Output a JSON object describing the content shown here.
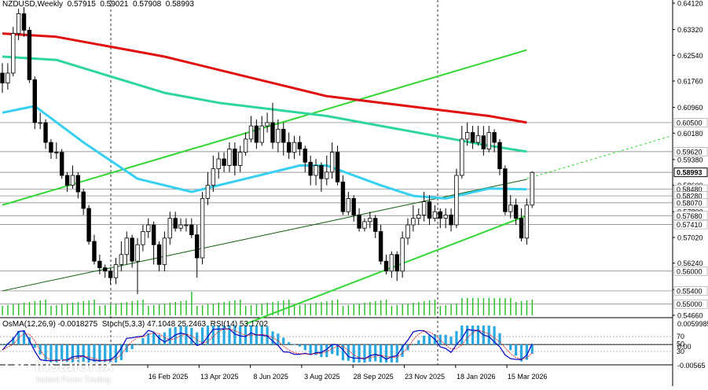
{
  "header": {
    "symbol": "NZDUSD,Weekly",
    "open": "0.57915",
    "high": "0.59021",
    "low": "0.57908",
    "close": "0.58993"
  },
  "indicator_header": {
    "osma": "OsMA(12,26,9) -0.0018275",
    "stoch": "Stoch(5,3,3) 47.1048 25.2463",
    "rsi": "RSI(14) 53.1702"
  },
  "logo": {
    "main": "instaforex",
    "sub": "Instant Forex Trading"
  },
  "colors": {
    "ma_red": "#e01010",
    "ma_teal": "#2ed69a",
    "ma_cyan": "#38d0f0",
    "channel": "#33d633",
    "candle_bull": "#ffffff",
    "candle_bear": "#000000",
    "volume": "#22bb22",
    "osma": "#2aa8e0",
    "stoch_main": "#1010c0",
    "stoch_signal": "#e01010",
    "price_label_bg": "#ffffff"
  },
  "chart_data": {
    "type": "candlestick",
    "title": "NZDUSD,Weekly",
    "ylim": [
      0.5466,
      0.6412
    ],
    "x_tick_labels": [
      "16 Feb 2025",
      "13 Apr 2025",
      "8 Jun 2025",
      "3 Aug 2025",
      "28 Sep 2025",
      "23 Nov 2025",
      "18 Jan 2026",
      "15 Mar 2026"
    ],
    "y_tick_labels": [
      "0.64120",
      "0.63320",
      "0.62540",
      "0.61760",
      "0.60960",
      "0.60180",
      "0.59380",
      "0.58600",
      "0.57800",
      "0.57020",
      "0.56240",
      "0.55440",
      "0.54660"
    ],
    "price_levels": [
      {
        "label": "0.60500",
        "value": 0.605
      },
      {
        "label": "0.59620",
        "value": 0.5962
      },
      {
        "label": "0.58993",
        "value": 0.58993,
        "current": true
      },
      {
        "label": "0.58480",
        "value": 0.5848
      },
      {
        "label": "0.58280",
        "value": 0.5828
      },
      {
        "label": "0.58070",
        "value": 0.5807
      },
      {
        "label": "0.57680",
        "value": 0.5768
      },
      {
        "label": "0.57410",
        "value": 0.5741
      },
      {
        "label": "0.56000",
        "value": 0.56
      },
      {
        "label": "0.55400",
        "value": 0.554
      },
      {
        "label": "0.55000",
        "value": 0.55
      }
    ],
    "candles": [
      [
        0.62,
        0.617,
        0.623,
        0.614
      ],
      [
        0.617,
        0.62,
        0.623,
        0.615
      ],
      [
        0.62,
        0.632,
        0.634,
        0.619
      ],
      [
        0.632,
        0.638,
        0.6395,
        0.63
      ],
      [
        0.638,
        0.633,
        0.64,
        0.631
      ],
      [
        0.633,
        0.618,
        0.634,
        0.617
      ],
      [
        0.618,
        0.605,
        0.619,
        0.603
      ],
      [
        0.605,
        0.605,
        0.608,
        0.603
      ],
      [
        0.605,
        0.599,
        0.606,
        0.597
      ],
      [
        0.599,
        0.596,
        0.6,
        0.594
      ],
      [
        0.596,
        0.596,
        0.599,
        0.594
      ],
      [
        0.596,
        0.589,
        0.597,
        0.588
      ],
      [
        0.589,
        0.586,
        0.59,
        0.584
      ],
      [
        0.586,
        0.589,
        0.592,
        0.585
      ],
      [
        0.589,
        0.584,
        0.59,
        0.582
      ],
      [
        0.584,
        0.579,
        0.585,
        0.577
      ],
      [
        0.579,
        0.569,
        0.58,
        0.568
      ],
      [
        0.569,
        0.563,
        0.571,
        0.562
      ],
      [
        0.563,
        0.561,
        0.565,
        0.559
      ],
      [
        0.561,
        0.56,
        0.562,
        0.558
      ],
      [
        0.56,
        0.558,
        0.561,
        0.556
      ],
      [
        0.558,
        0.562,
        0.564,
        0.556
      ],
      [
        0.562,
        0.565,
        0.569,
        0.56
      ],
      [
        0.565,
        0.57,
        0.572,
        0.562
      ],
      [
        0.57,
        0.563,
        0.571,
        0.561
      ],
      [
        0.563,
        0.568,
        0.57,
        0.553
      ],
      [
        0.568,
        0.572,
        0.574,
        0.566
      ],
      [
        0.572,
        0.574,
        0.576,
        0.57
      ],
      [
        0.574,
        0.568,
        0.575,
        0.562
      ],
      [
        0.568,
        0.562,
        0.569,
        0.56
      ],
      [
        0.562,
        0.57,
        0.572,
        0.56
      ],
      [
        0.57,
        0.576,
        0.578,
        0.568
      ],
      [
        0.576,
        0.573,
        0.578,
        0.572
      ],
      [
        0.573,
        0.574,
        0.576,
        0.572
      ],
      [
        0.574,
        0.574,
        0.576,
        0.572
      ],
      [
        0.574,
        0.571,
        0.576,
        0.57
      ],
      [
        0.571,
        0.564,
        0.574,
        0.558
      ],
      [
        0.564,
        0.582,
        0.584,
        0.562
      ],
      [
        0.582,
        0.586,
        0.59,
        0.58
      ],
      [
        0.586,
        0.591,
        0.595,
        0.584
      ],
      [
        0.591,
        0.594,
        0.596,
        0.588
      ],
      [
        0.594,
        0.592,
        0.596,
        0.59
      ],
      [
        0.592,
        0.597,
        0.599,
        0.59
      ],
      [
        0.597,
        0.592,
        0.599,
        0.589
      ],
      [
        0.592,
        0.596,
        0.598,
        0.59
      ],
      [
        0.596,
        0.6,
        0.602,
        0.595
      ],
      [
        0.6,
        0.604,
        0.607,
        0.599
      ],
      [
        0.604,
        0.599,
        0.606,
        0.597
      ],
      [
        0.599,
        0.604,
        0.607,
        0.598
      ],
      [
        0.604,
        0.605,
        0.608,
        0.602
      ],
      [
        0.605,
        0.599,
        0.611,
        0.597
      ],
      [
        0.599,
        0.603,
        0.606,
        0.596
      ],
      [
        0.603,
        0.599,
        0.605,
        0.595
      ],
      [
        0.599,
        0.596,
        0.602,
        0.594
      ],
      [
        0.596,
        0.599,
        0.601,
        0.594
      ],
      [
        0.599,
        0.597,
        0.601,
        0.595
      ],
      [
        0.597,
        0.593,
        0.598,
        0.59
      ],
      [
        0.593,
        0.589,
        0.595,
        0.586
      ],
      [
        0.589,
        0.592,
        0.594,
        0.586
      ],
      [
        0.592,
        0.588,
        0.593,
        0.584
      ],
      [
        0.588,
        0.59,
        0.595,
        0.586
      ],
      [
        0.59,
        0.596,
        0.599,
        0.588
      ],
      [
        0.596,
        0.587,
        0.598,
        0.586
      ],
      [
        0.587,
        0.578,
        0.589,
        0.577
      ],
      [
        0.578,
        0.582,
        0.584,
        0.577
      ],
      [
        0.582,
        0.577,
        0.583,
        0.575
      ],
      [
        0.577,
        0.573,
        0.579,
        0.572
      ],
      [
        0.573,
        0.575,
        0.576,
        0.572
      ],
      [
        0.575,
        0.576,
        0.578,
        0.573
      ],
      [
        0.576,
        0.572,
        0.577,
        0.57
      ],
      [
        0.572,
        0.563,
        0.574,
        0.562
      ],
      [
        0.563,
        0.56,
        0.565,
        0.559
      ],
      [
        0.56,
        0.565,
        0.566,
        0.558
      ],
      [
        0.565,
        0.56,
        0.566,
        0.557
      ],
      [
        0.56,
        0.57,
        0.572,
        0.558
      ],
      [
        0.57,
        0.574,
        0.576,
        0.568
      ],
      [
        0.574,
        0.576,
        0.58,
        0.572
      ],
      [
        0.576,
        0.577,
        0.579,
        0.574
      ],
      [
        0.577,
        0.581,
        0.584,
        0.575
      ],
      [
        0.581,
        0.576,
        0.583,
        0.574
      ],
      [
        0.576,
        0.578,
        0.58,
        0.575
      ],
      [
        0.578,
        0.576,
        0.579,
        0.573
      ],
      [
        0.576,
        0.577,
        0.579,
        0.573
      ],
      [
        0.577,
        0.574,
        0.579,
        0.572
      ],
      [
        0.574,
        0.589,
        0.591,
        0.573
      ],
      [
        0.589,
        0.6,
        0.604,
        0.588
      ],
      [
        0.6,
        0.602,
        0.605,
        0.598
      ],
      [
        0.602,
        0.599,
        0.604,
        0.597
      ],
      [
        0.599,
        0.601,
        0.604,
        0.598
      ],
      [
        0.601,
        0.597,
        0.604,
        0.595
      ],
      [
        0.597,
        0.602,
        0.604,
        0.596
      ],
      [
        0.602,
        0.599,
        0.603,
        0.596
      ],
      [
        0.599,
        0.591,
        0.6,
        0.589
      ],
      [
        0.591,
        0.578,
        0.592,
        0.577
      ],
      [
        0.578,
        0.58,
        0.583,
        0.576
      ],
      [
        0.58,
        0.576,
        0.582,
        0.574
      ],
      [
        0.576,
        0.57,
        0.579,
        0.569
      ],
      [
        0.57,
        0.58,
        0.582,
        0.568
      ],
      [
        0.58,
        0.5899,
        0.5902,
        0.5791
      ]
    ],
    "ma_200": [
      [
        0,
        0.632
      ],
      [
        10,
        0.631
      ],
      [
        20,
        0.628
      ],
      [
        30,
        0.625
      ],
      [
        40,
        0.621
      ],
      [
        50,
        0.617
      ],
      [
        60,
        0.613
      ],
      [
        70,
        0.611
      ],
      [
        80,
        0.609
      ],
      [
        90,
        0.607
      ],
      [
        97,
        0.605
      ]
    ],
    "ma_100": [
      [
        0,
        0.625
      ],
      [
        10,
        0.624
      ],
      [
        20,
        0.619
      ],
      [
        30,
        0.614
      ],
      [
        40,
        0.611
      ],
      [
        50,
        0.609
      ],
      [
        60,
        0.607
      ],
      [
        70,
        0.604
      ],
      [
        80,
        0.601
      ],
      [
        90,
        0.598
      ],
      [
        97,
        0.5962
      ]
    ],
    "ma_50": [
      [
        0,
        0.608
      ],
      [
        6,
        0.61
      ],
      [
        15,
        0.599
      ],
      [
        25,
        0.588
      ],
      [
        35,
        0.584
      ],
      [
        45,
        0.588
      ],
      [
        55,
        0.592
      ],
      [
        60,
        0.592
      ],
      [
        70,
        0.586
      ],
      [
        76,
        0.5828
      ],
      [
        82,
        0.582
      ],
      [
        90,
        0.585
      ],
      [
        97,
        0.5848
      ]
    ],
    "channel_top": [
      [
        0,
        0.58
      ],
      [
        97,
        0.627
      ]
    ],
    "channel_bottom": [
      [
        45,
        0.544
      ],
      [
        97,
        0.5768
      ]
    ],
    "trend_line": [
      [
        0,
        0.554
      ],
      [
        97,
        0.5878
      ]
    ],
    "osma": {
      "range": [
        -0.00565,
        0.0059985
      ]
    },
    "stochastic": {
      "levels": [
        70,
        50,
        30
      ]
    },
    "osma_tick_labels": [
      "0.0059985",
      "0.00",
      "-0.00565"
    ],
    "stoch_tick_labels": [
      "70",
      "50",
      "30"
    ]
  }
}
